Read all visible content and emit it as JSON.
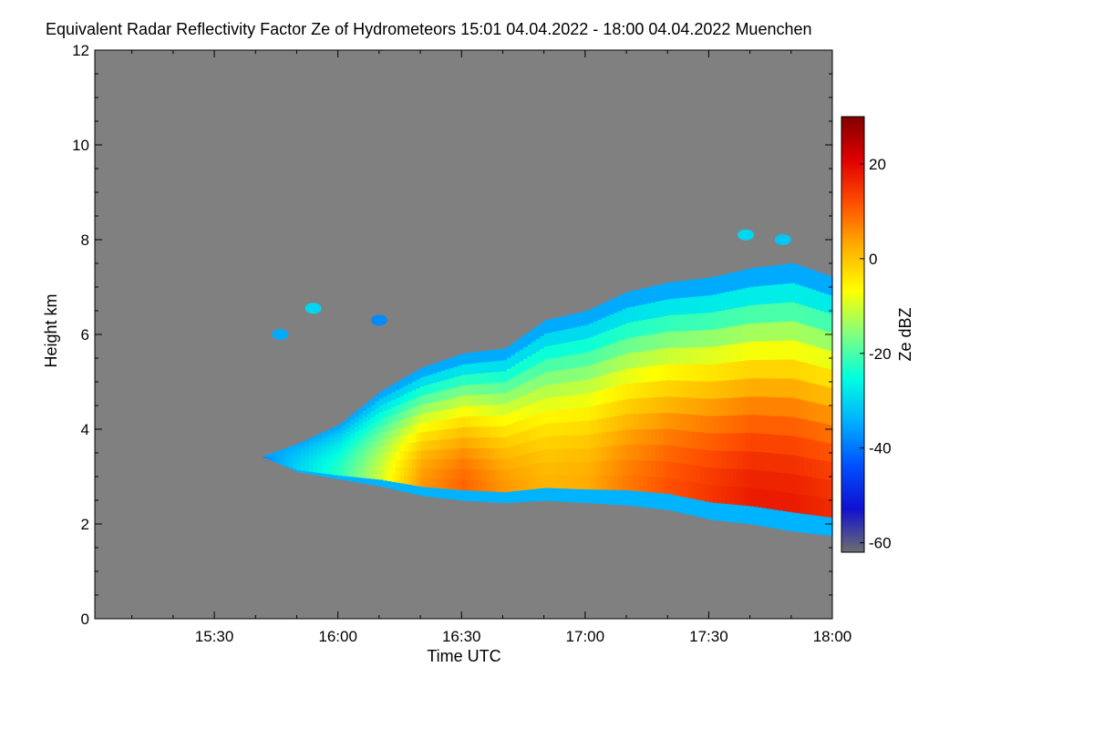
{
  "chart_data": {
    "type": "heatmap",
    "title": "Equivalent Radar Reflectivity Factor Ze of Hydrometeors   15:01 04.04.2022 - 18:00 04.04.2022 Muenchen",
    "xlabel": "Time UTC",
    "ylabel": "Height km",
    "x_ticks": [
      "15:30",
      "16:00",
      "16:30",
      "17:00",
      "17:30",
      "18:00"
    ],
    "x_tick_minutes": [
      30,
      60,
      90,
      120,
      150,
      180
    ],
    "xlim_minutes": [
      1,
      180
    ],
    "y_ticks": [
      "0",
      "2",
      "4",
      "6",
      "8",
      "10",
      "12"
    ],
    "y_tick_values": [
      0,
      2,
      4,
      6,
      8,
      10,
      12
    ],
    "ylim": [
      0,
      12
    ],
    "colorbar": {
      "label": "Ze dBZ",
      "ticks": [
        "20",
        "0",
        "-20",
        "-40",
        "-60"
      ],
      "tick_values": [
        20,
        0,
        -20,
        -40,
        -60
      ],
      "range": [
        -62,
        30
      ],
      "colors": [
        "#6e6e6e",
        "#1010d0",
        "#0050ff",
        "#00b0ff",
        "#00ffe0",
        "#80ff80",
        "#ffff00",
        "#ffb000",
        "#ff5000",
        "#e00000",
        "#800000"
      ]
    },
    "background_color": "#808080",
    "cloud_layer": {
      "time_minutes": [
        42,
        50,
        60,
        70,
        80,
        90,
        100,
        110,
        120,
        130,
        140,
        150,
        160,
        170,
        180
      ],
      "base_km": [
        3.4,
        3.1,
        2.95,
        2.8,
        2.6,
        2.5,
        2.45,
        2.5,
        2.45,
        2.4,
        2.3,
        2.1,
        2.0,
        1.85,
        1.75
      ],
      "top_km": [
        3.45,
        3.7,
        4.1,
        4.8,
        5.3,
        5.6,
        5.7,
        6.3,
        6.5,
        6.9,
        7.1,
        7.2,
        7.4,
        7.5,
        7.2
      ],
      "peak_dbz": [
        -38,
        -30,
        -22,
        -10,
        5,
        10,
        5,
        2,
        3,
        8,
        12,
        15,
        18,
        18,
        16
      ]
    },
    "isolated_echoes": [
      {
        "time_minutes": 46,
        "height_km": 6.0,
        "dbz": -35
      },
      {
        "time_minutes": 54,
        "height_km": 6.55,
        "dbz": -30
      },
      {
        "time_minutes": 70,
        "height_km": 6.3,
        "dbz": -38
      },
      {
        "time_minutes": 159,
        "height_km": 8.1,
        "dbz": -30
      },
      {
        "time_minutes": 168,
        "height_km": 8.0,
        "dbz": -32
      }
    ]
  }
}
